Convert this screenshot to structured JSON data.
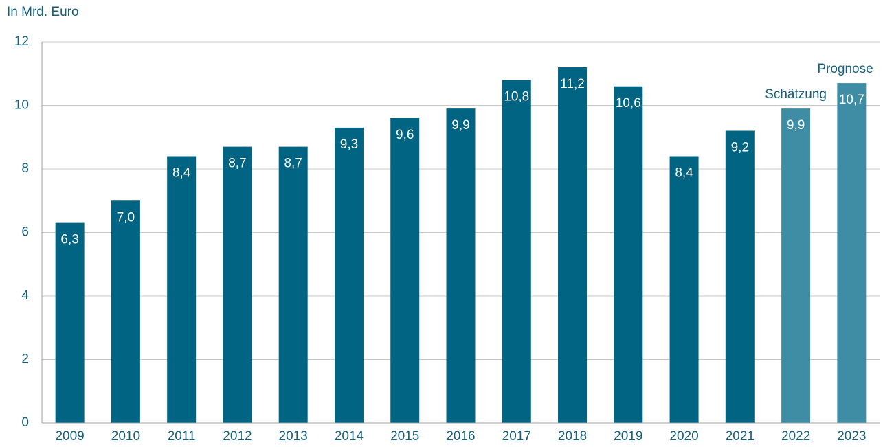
{
  "chart_data": {
    "type": "bar",
    "y_label": "In Mrd. Euro",
    "categories": [
      "2009",
      "2010",
      "2011",
      "2012",
      "2013",
      "2014",
      "2015",
      "2016",
      "2017",
      "2018",
      "2019",
      "2020",
      "2021",
      "2022",
      "2023"
    ],
    "values": [
      6.3,
      7.0,
      8.4,
      8.7,
      8.7,
      9.3,
      9.6,
      9.9,
      10.8,
      11.2,
      10.6,
      8.4,
      9.2,
      9.9,
      10.7
    ],
    "value_labels": [
      "6,3",
      "7,0",
      "8,4",
      "8,7",
      "8,7",
      "9,3",
      "9,6",
      "9,9",
      "10,8",
      "11,2",
      "10,6",
      "8,4",
      "9,2",
      "9,9",
      "10,7"
    ],
    "colors": [
      "#006482",
      "#006482",
      "#006482",
      "#006482",
      "#006482",
      "#006482",
      "#006482",
      "#006482",
      "#006482",
      "#006482",
      "#006482",
      "#006482",
      "#006482",
      "#3f8ca5",
      "#3f8ca5"
    ],
    "annotations": [
      {
        "text": "Schätzung",
        "category": "2022"
      },
      {
        "text": "Prognose",
        "category": "2023"
      }
    ],
    "ylim": [
      0,
      12
    ],
    "yticks": [
      0,
      2,
      4,
      6,
      8,
      10,
      12
    ],
    "grid": true
  }
}
